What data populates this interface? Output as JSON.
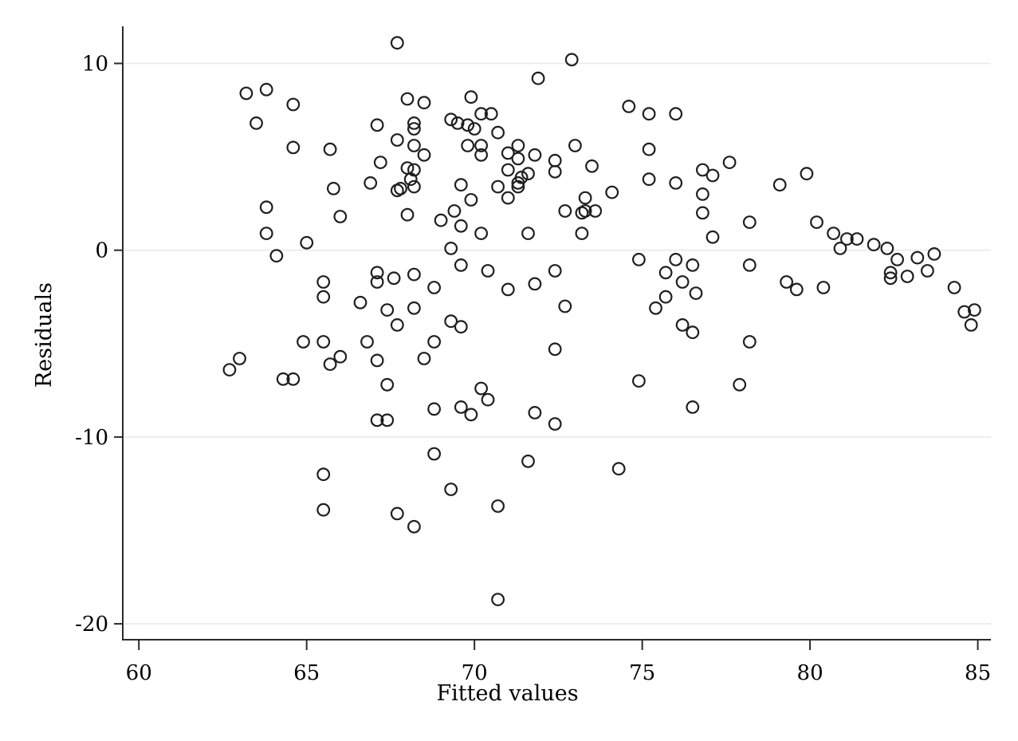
{
  "chart_data": {
    "type": "scatter",
    "title": "",
    "xlabel": "Fitted values",
    "ylabel": "Residuals",
    "x_ticks": [
      60,
      65,
      70,
      75,
      80,
      85
    ],
    "y_ticks": [
      10,
      0,
      -10,
      -20
    ],
    "xlim": [
      59.52,
      85.39
    ],
    "ylim": [
      -20.85,
      11.9
    ],
    "grid": "horizontal-only",
    "legend": "none",
    "marker": "hollow-circle",
    "marker_color": "#1f1f1f",
    "axis_color": "#2b2b2b",
    "grid_color": "#e9e9e9",
    "background_color": "#ffffff",
    "points": [
      [
        67.7,
        11.1
      ],
      [
        63.2,
        8.4
      ],
      [
        63.8,
        8.6
      ],
      [
        64.6,
        7.8
      ],
      [
        63.5,
        6.8
      ],
      [
        64.6,
        5.5
      ],
      [
        65.7,
        5.4
      ],
      [
        68.0,
        8.1
      ],
      [
        68.5,
        7.9
      ],
      [
        69.9,
        8.2
      ],
      [
        67.1,
        6.7
      ],
      [
        68.2,
        6.8
      ],
      [
        68.2,
        6.5
      ],
      [
        67.7,
        5.9
      ],
      [
        68.2,
        5.6
      ],
      [
        68.5,
        5.1
      ],
      [
        69.3,
        7.0
      ],
      [
        69.5,
        6.8
      ],
      [
        69.8,
        6.7
      ],
      [
        70.0,
        6.5
      ],
      [
        70.2,
        7.3
      ],
      [
        70.5,
        7.3
      ],
      [
        69.8,
        5.6
      ],
      [
        70.2,
        5.6
      ],
      [
        70.2,
        5.1
      ],
      [
        67.2,
        4.7
      ],
      [
        68.0,
        4.4
      ],
      [
        68.2,
        4.3
      ],
      [
        68.1,
        3.8
      ],
      [
        67.8,
        3.3
      ],
      [
        67.7,
        3.2
      ],
      [
        68.2,
        3.4
      ],
      [
        66.9,
        3.6
      ],
      [
        65.8,
        3.3
      ],
      [
        69.6,
        3.5
      ],
      [
        69.9,
        2.7
      ],
      [
        63.8,
        2.3
      ],
      [
        66.0,
        1.8
      ],
      [
        68.0,
        1.9
      ],
      [
        69.4,
        2.1
      ],
      [
        69.0,
        1.6
      ],
      [
        69.6,
        1.3
      ],
      [
        63.8,
        0.9
      ],
      [
        65.0,
        0.4
      ],
      [
        70.2,
        0.9
      ],
      [
        69.3,
        0.1
      ],
      [
        71.9,
        9.2
      ],
      [
        72.9,
        10.2
      ],
      [
        70.7,
        6.3
      ],
      [
        71.3,
        5.6
      ],
      [
        71.0,
        5.2
      ],
      [
        71.3,
        4.9
      ],
      [
        71.8,
        5.1
      ],
      [
        73.0,
        5.6
      ],
      [
        71.0,
        4.3
      ],
      [
        71.6,
        4.1
      ],
      [
        71.4,
        3.9
      ],
      [
        71.3,
        3.6
      ],
      [
        70.7,
        3.4
      ],
      [
        71.3,
        3.4
      ],
      [
        72.4,
        4.8
      ],
      [
        72.4,
        4.2
      ],
      [
        73.5,
        4.5
      ],
      [
        71.0,
        2.8
      ],
      [
        73.3,
        2.8
      ],
      [
        72.7,
        2.1
      ],
      [
        73.2,
        2.0
      ],
      [
        73.3,
        2.1
      ],
      [
        73.6,
        2.1
      ],
      [
        71.6,
        0.9
      ],
      [
        73.2,
        0.9
      ],
      [
        74.1,
        3.1
      ],
      [
        74.6,
        7.7
      ],
      [
        75.2,
        7.3
      ],
      [
        76.0,
        7.3
      ],
      [
        75.2,
        5.4
      ],
      [
        75.2,
        3.8
      ],
      [
        76.0,
        3.6
      ],
      [
        76.8,
        4.3
      ],
      [
        77.1,
        4.0
      ],
      [
        77.6,
        4.7
      ],
      [
        76.8,
        3.0
      ],
      [
        76.8,
        2.0
      ],
      [
        78.2,
        1.5
      ],
      [
        77.1,
        0.7
      ],
      [
        79.1,
        3.5
      ],
      [
        79.9,
        4.1
      ],
      [
        80.2,
        1.5
      ],
      [
        80.7,
        0.9
      ],
      [
        80.9,
        0.1
      ],
      [
        81.1,
        0.6
      ],
      [
        81.4,
        0.6
      ],
      [
        81.9,
        0.3
      ],
      [
        82.3,
        0.1
      ],
      [
        74.9,
        -0.5
      ],
      [
        76.0,
        -0.5
      ],
      [
        75.7,
        -1.2
      ],
      [
        76.5,
        -0.8
      ],
      [
        76.2,
        -1.7
      ],
      [
        76.6,
        -2.3
      ],
      [
        75.7,
        -2.5
      ],
      [
        75.4,
        -3.1
      ],
      [
        76.2,
        -4.0
      ],
      [
        76.5,
        -4.4
      ],
      [
        78.2,
        -0.8
      ],
      [
        78.2,
        -4.9
      ],
      [
        79.3,
        -1.7
      ],
      [
        79.6,
        -2.1
      ],
      [
        80.4,
        -2.0
      ],
      [
        74.9,
        -7.0
      ],
      [
        77.9,
        -7.2
      ],
      [
        76.5,
        -8.4
      ],
      [
        82.6,
        -0.5
      ],
      [
        82.4,
        -1.2
      ],
      [
        82.4,
        -1.5
      ],
      [
        82.9,
        -1.4
      ],
      [
        83.2,
        -0.4
      ],
      [
        83.5,
        -1.1
      ],
      [
        83.7,
        -0.2
      ],
      [
        84.3,
        -2.0
      ],
      [
        84.6,
        -3.3
      ],
      [
        84.9,
        -3.2
      ],
      [
        84.8,
        -4.0
      ],
      [
        64.1,
        -0.3
      ],
      [
        65.5,
        -1.7
      ],
      [
        65.5,
        -2.5
      ],
      [
        67.1,
        -1.2
      ],
      [
        67.1,
        -1.7
      ],
      [
        67.6,
        -1.5
      ],
      [
        68.2,
        -1.3
      ],
      [
        68.8,
        -2.0
      ],
      [
        66.6,
        -2.8
      ],
      [
        67.4,
        -3.2
      ],
      [
        67.7,
        -4.0
      ],
      [
        68.2,
        -3.1
      ],
      [
        69.6,
        -0.8
      ],
      [
        69.3,
        -3.8
      ],
      [
        69.6,
        -4.1
      ],
      [
        70.4,
        -1.1
      ],
      [
        64.9,
        -4.9
      ],
      [
        65.5,
        -4.9
      ],
      [
        66.8,
        -4.9
      ],
      [
        65.7,
        -6.1
      ],
      [
        66.0,
        -5.7
      ],
      [
        67.1,
        -5.9
      ],
      [
        63.0,
        -5.8
      ],
      [
        62.7,
        -6.4
      ],
      [
        64.3,
        -6.9
      ],
      [
        64.6,
        -6.9
      ],
      [
        68.5,
        -5.8
      ],
      [
        68.8,
        -4.9
      ],
      [
        67.4,
        -7.2
      ],
      [
        68.8,
        -8.5
      ],
      [
        69.6,
        -8.4
      ],
      [
        69.9,
        -8.8
      ],
      [
        67.1,
        -9.1
      ],
      [
        67.4,
        -9.1
      ],
      [
        70.2,
        -7.4
      ],
      [
        70.4,
        -8.0
      ],
      [
        71.0,
        -2.1
      ],
      [
        71.8,
        -1.8
      ],
      [
        72.4,
        -1.1
      ],
      [
        72.7,
        -3.0
      ],
      [
        72.4,
        -5.3
      ],
      [
        71.8,
        -8.7
      ],
      [
        72.4,
        -9.3
      ],
      [
        68.8,
        -10.9
      ],
      [
        65.5,
        -12.0
      ],
      [
        69.3,
        -12.8
      ],
      [
        65.5,
        -13.9
      ],
      [
        67.7,
        -14.1
      ],
      [
        68.2,
        -14.8
      ],
      [
        71.6,
        -11.3
      ],
      [
        74.3,
        -11.7
      ],
      [
        70.7,
        -13.7
      ],
      [
        70.7,
        -18.7
      ]
    ]
  }
}
